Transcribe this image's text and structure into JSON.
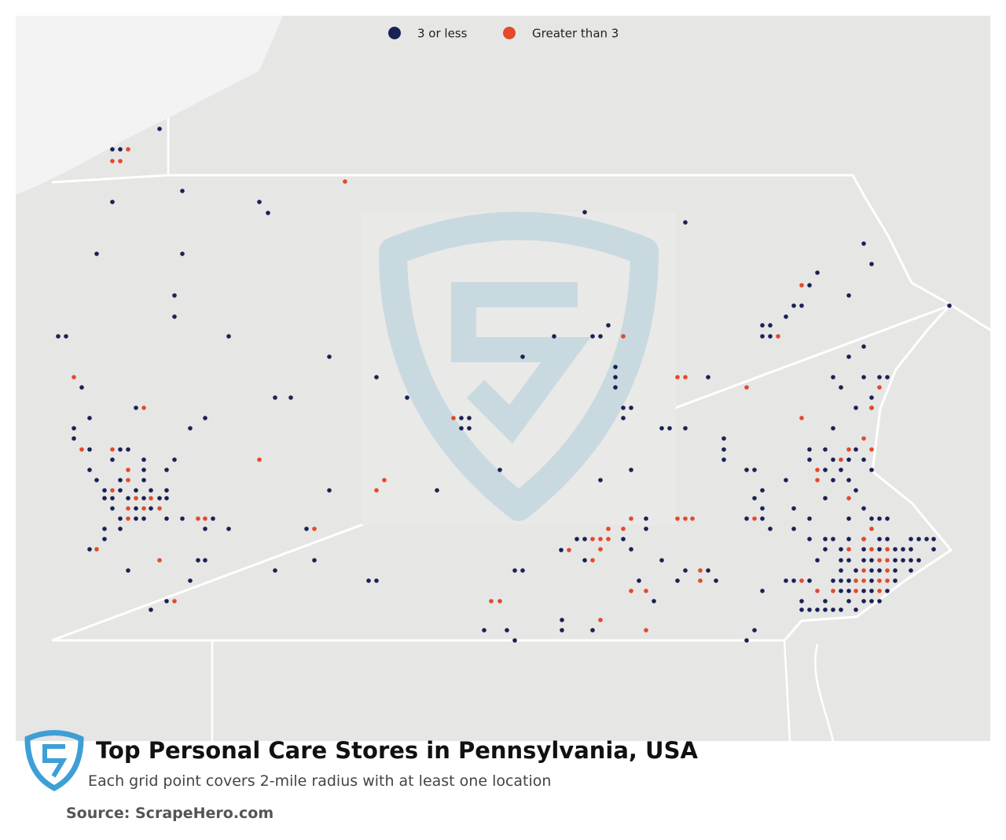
{
  "legend": [
    {
      "label": "3 or less",
      "color": "#1a2155"
    },
    {
      "label": "Greater than 3",
      "color": "#e4492a"
    }
  ],
  "title": "Top Personal Care Stores in Pennsylvania, USA",
  "subtitle": "Each grid point covers 2-mile radius with at least one location",
  "source": "Source: ScrapeHero.com"
}
